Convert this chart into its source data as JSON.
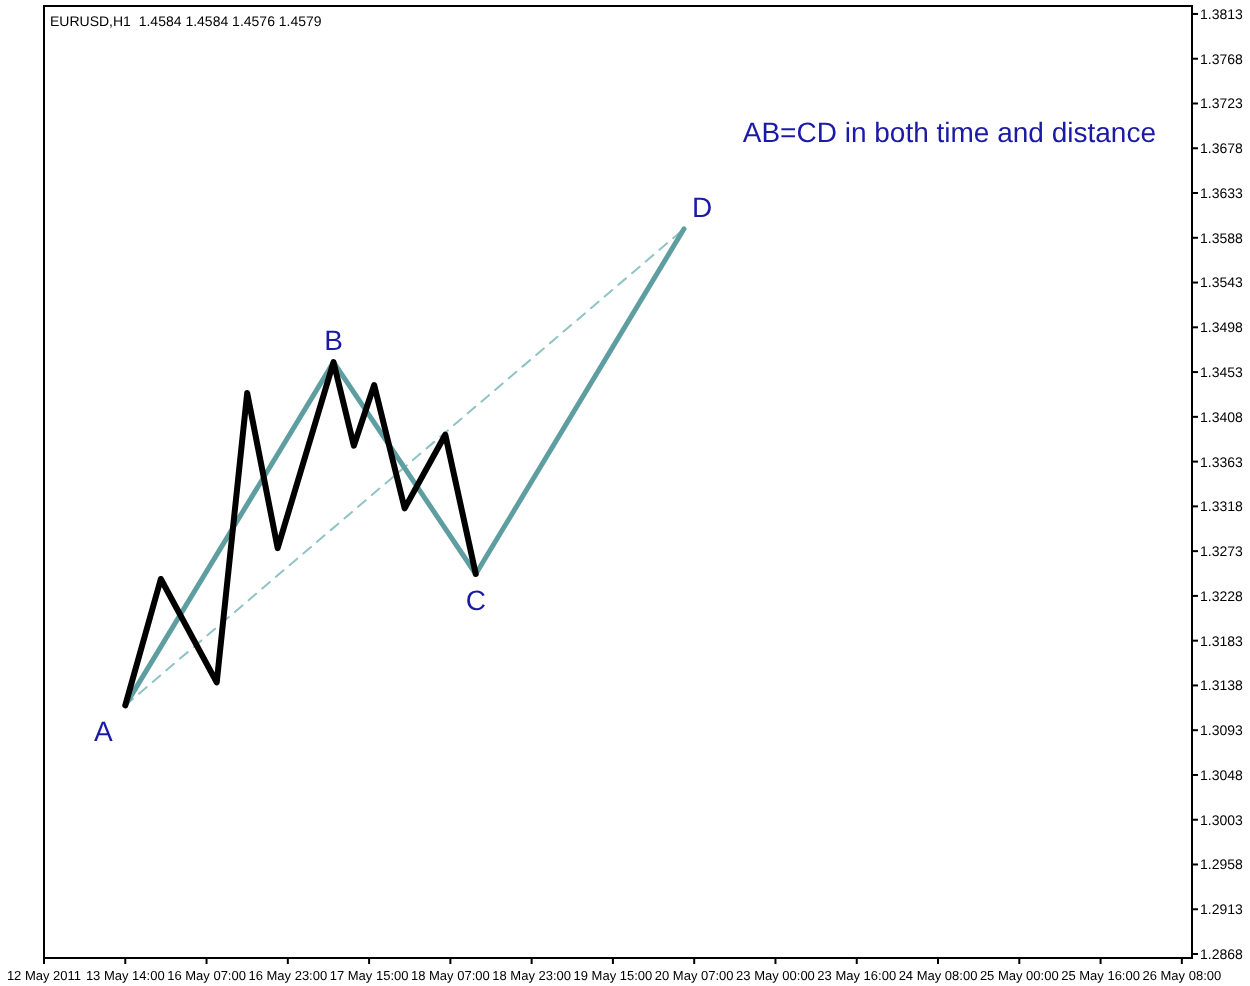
{
  "chart_data": {
    "type": "line",
    "title": "EURUSD,H1  1.4584 1.4584 1.4576 1.4579",
    "categories": [
      "12 May 2011",
      null,
      null,
      null,
      null,
      null,
      null,
      null,
      null,
      null,
      null,
      null,
      null,
      null,
      null,
      null,
      "13 May 14:00",
      null,
      null,
      null,
      null,
      null,
      null,
      null,
      null,
      null,
      null,
      null,
      null,
      null,
      null,
      null,
      "16 May 07:00",
      null,
      null,
      null,
      null,
      null,
      null,
      null,
      null,
      null,
      null,
      null,
      null,
      null,
      null,
      null,
      "16 May 23:00",
      null,
      null,
      null,
      null,
      null,
      null,
      null,
      null,
      null,
      null,
      null,
      null,
      null,
      null,
      null,
      "17 May 15:00",
      null,
      null,
      null,
      null,
      null,
      null,
      null,
      null,
      null,
      null,
      null,
      null,
      null,
      null,
      null,
      "18 May 07:00",
      null,
      null,
      null,
      null,
      null,
      null,
      null,
      null,
      null,
      null,
      null,
      null,
      null,
      null,
      null,
      "18 May 23:00",
      null,
      null,
      null,
      null,
      null,
      null,
      null,
      null,
      null,
      null,
      null,
      null,
      null,
      null,
      null,
      "19 May 15:00",
      null,
      null,
      null,
      null,
      null,
      null,
      null,
      null,
      null,
      null,
      null,
      null,
      null,
      null,
      null,
      "20 May 07:00",
      null,
      null,
      null,
      null,
      null,
      null,
      null,
      null,
      null,
      null,
      null,
      null,
      null,
      null,
      null,
      "23 May 00:00",
      null,
      null,
      null,
      null,
      null,
      null,
      null,
      null,
      null,
      null,
      null,
      null,
      null,
      null,
      null,
      "23 May 16:00",
      null,
      null,
      null,
      null,
      null,
      null,
      null,
      null,
      null,
      null,
      null,
      null,
      null,
      null,
      null,
      "24 May 08:00",
      null,
      null,
      null,
      null,
      null,
      null,
      null,
      null,
      null,
      null,
      null,
      null,
      null,
      null,
      null,
      "25 May 00:00",
      null,
      null,
      null,
      null,
      null,
      null,
      null,
      null,
      null,
      null,
      null,
      null,
      null,
      null,
      null,
      "25 May 16:00",
      null,
      null,
      null,
      null,
      null,
      null,
      null,
      null,
      null,
      null,
      null,
      null,
      null,
      null,
      null,
      "26 May 08:00",
      null,
      null
    ],
    "ylim": [
      1.2864,
      1.3821
    ],
    "yticks": [
      {
        "value": 1.2868,
        "label": "1.2868"
      },
      {
        "value": 1.2913,
        "label": "1.2913"
      },
      {
        "value": 1.2958,
        "label": "1.2958"
      },
      {
        "value": 1.3003,
        "label": "1.3003"
      },
      {
        "value": 1.3048,
        "label": "1.3048"
      },
      {
        "value": 1.3093,
        "label": "1.3093"
      },
      {
        "value": 1.3138,
        "label": "1.3138"
      },
      {
        "value": 1.3183,
        "label": "1.3183"
      },
      {
        "value": 1.3228,
        "label": "1.3228"
      },
      {
        "value": 1.3273,
        "label": "1.3273"
      },
      {
        "value": 1.3318,
        "label": "1.3318"
      },
      {
        "value": 1.3363,
        "label": "1.3363"
      },
      {
        "value": 1.3408,
        "label": "1.3408"
      },
      {
        "value": 1.3453,
        "label": "1.3453"
      },
      {
        "value": 1.3498,
        "label": "1.3498"
      },
      {
        "value": 1.3543,
        "label": "1.3543"
      },
      {
        "value": 1.3588,
        "label": "1.3588"
      },
      {
        "value": 1.3633,
        "label": "1.3633"
      },
      {
        "value": 1.3678,
        "label": "1.3678"
      },
      {
        "value": 1.3723,
        "label": "1.3723"
      },
      {
        "value": 1.3768,
        "label": "1.3768"
      },
      {
        "value": 1.3813,
        "label": "1.3813"
      }
    ],
    "grid": false,
    "marker": "none",
    "series": [
      {
        "color": "#8fc3c6",
        "line_style": "dashed",
        "values": [
          null,
          null,
          null,
          null,
          null,
          null,
          null,
          null,
          null,
          null,
          null,
          null,
          null,
          null,
          null,
          null,
          1.3118,
          null,
          null,
          null,
          null,
          null,
          null,
          null,
          null,
          null,
          null,
          null,
          null,
          null,
          null,
          null,
          null,
          null,
          null,
          null,
          null,
          null,
          null,
          null,
          null,
          null,
          null,
          null,
          null,
          null,
          null,
          null,
          null,
          null,
          null,
          null,
          null,
          null,
          null,
          null,
          null,
          null,
          null,
          null,
          null,
          null,
          null,
          null,
          null,
          null,
          null,
          null,
          null,
          null,
          null,
          null,
          null,
          null,
          null,
          null,
          null,
          null,
          null,
          null,
          null,
          null,
          null,
          null,
          null,
          null,
          null,
          null,
          null,
          null,
          null,
          null,
          null,
          null,
          null,
          null,
          null,
          null,
          null,
          null,
          null,
          null,
          null,
          null,
          null,
          null,
          null,
          null,
          null,
          null,
          null,
          null,
          null,
          null,
          null,
          null,
          null,
          null,
          null,
          null,
          null,
          null,
          null,
          null,
          null,
          null,
          1.3597,
          null,
          null,
          null,
          null,
          null,
          null,
          null,
          null,
          null,
          null,
          null,
          null,
          null,
          null,
          null,
          null,
          null,
          null,
          null,
          null,
          null,
          null,
          null,
          null,
          null,
          null,
          null,
          null,
          null,
          null,
          null,
          null,
          null,
          null,
          null,
          null,
          null,
          null,
          null,
          null,
          null,
          null,
          null,
          null,
          null,
          null,
          null,
          null,
          null,
          null,
          null,
          null,
          null,
          null,
          null,
          null,
          null,
          null,
          null,
          null,
          null,
          null,
          null,
          null,
          null,
          null,
          null,
          null,
          null,
          null,
          null,
          null,
          null,
          null,
          null,
          null,
          null,
          null,
          null,
          null,
          null,
          null,
          null,
          null,
          null,
          null,
          null,
          null,
          null,
          null,
          null,
          null,
          null,
          null,
          null,
          null,
          null,
          null,
          null,
          null
        ]
      },
      {
        "color": "#5f9ea0",
        "line_style": "solid",
        "values": [
          null,
          null,
          null,
          null,
          null,
          null,
          null,
          null,
          null,
          null,
          null,
          null,
          null,
          null,
          null,
          null,
          1.3118,
          null,
          null,
          null,
          null,
          null,
          null,
          null,
          null,
          null,
          null,
          null,
          null,
          null,
          null,
          null,
          null,
          null,
          null,
          null,
          null,
          null,
          null,
          null,
          null,
          null,
          null,
          null,
          null,
          null,
          null,
          null,
          null,
          null,
          null,
          null,
          null,
          null,
          null,
          null,
          null,
          1.3463,
          null,
          null,
          null,
          null,
          null,
          null,
          null,
          null,
          null,
          null,
          null,
          null,
          null,
          null,
          null,
          null,
          null,
          null,
          null,
          null,
          null,
          null,
          null,
          null,
          null,
          null,
          null,
          1.325,
          null,
          null,
          null,
          null,
          null,
          null,
          null,
          null,
          null,
          null,
          null,
          null,
          null,
          null,
          null,
          null,
          null,
          null,
          null,
          null,
          null,
          null,
          null,
          null,
          null,
          null,
          null,
          null,
          null,
          null,
          null,
          null,
          null,
          null,
          null,
          null,
          null,
          null,
          null,
          null,
          1.3597,
          null,
          null,
          null,
          null,
          null,
          null,
          null,
          null,
          null,
          null,
          null,
          null,
          null,
          null,
          null,
          null,
          null,
          null,
          null,
          null,
          null,
          null,
          null,
          null,
          null,
          null,
          null,
          null,
          null,
          null,
          null,
          null,
          null,
          null,
          null,
          null,
          null,
          null,
          null,
          null,
          null,
          null,
          null,
          null,
          null,
          null,
          null,
          null,
          null,
          null,
          null,
          null,
          null,
          null,
          null,
          null,
          null,
          null,
          null,
          null,
          null,
          null,
          null,
          null,
          null,
          null,
          null,
          null,
          null,
          null,
          null,
          null,
          null,
          null,
          null,
          null,
          null,
          null,
          null,
          null,
          null,
          null,
          null,
          null,
          null,
          null,
          null,
          null,
          null,
          null,
          null,
          null,
          null,
          null,
          null,
          null,
          null,
          null,
          null,
          null
        ]
      },
      {
        "color": "#000000",
        "line_style": "solid",
        "values": [
          null,
          null,
          null,
          null,
          null,
          null,
          null,
          null,
          null,
          null,
          null,
          null,
          null,
          null,
          null,
          null,
          1.3118,
          null,
          null,
          null,
          null,
          null,
          null,
          1.3245,
          null,
          null,
          null,
          null,
          null,
          null,
          null,
          null,
          null,
          null,
          1.3141,
          null,
          null,
          null,
          null,
          null,
          1.3432,
          null,
          null,
          null,
          null,
          null,
          1.3276,
          null,
          null,
          null,
          null,
          null,
          null,
          null,
          null,
          null,
          null,
          1.3463,
          null,
          null,
          null,
          1.3379,
          null,
          null,
          null,
          1.344,
          null,
          null,
          null,
          null,
          null,
          1.3316,
          null,
          null,
          null,
          null,
          null,
          null,
          null,
          1.339,
          null,
          null,
          null,
          null,
          null,
          1.325,
          null,
          null,
          null,
          null,
          null,
          null,
          null,
          null,
          null,
          null,
          null,
          null,
          null,
          null,
          null,
          null,
          null,
          null,
          null,
          null,
          null,
          null,
          null,
          null,
          null,
          null,
          null,
          null,
          null,
          null,
          null,
          null,
          null,
          null,
          null,
          null,
          null,
          null,
          null,
          null,
          null,
          null,
          null,
          null,
          null,
          null,
          null,
          null,
          null,
          null,
          null,
          null,
          null,
          null,
          null,
          null,
          null,
          null,
          null,
          null,
          null,
          null,
          null,
          null,
          null,
          null,
          null,
          null,
          null,
          null,
          null,
          null,
          null,
          null,
          null,
          null,
          null,
          null,
          null,
          null,
          null,
          null,
          null,
          null,
          null,
          null,
          null,
          null,
          null,
          null,
          null,
          null,
          null,
          null,
          null,
          null,
          null,
          null,
          null,
          null,
          null,
          null,
          null,
          null,
          null,
          null,
          null,
          null,
          null,
          null,
          null,
          null,
          null,
          null,
          null,
          null,
          null,
          null,
          null,
          null,
          null,
          null,
          null,
          null,
          null,
          null,
          null,
          null,
          null,
          null,
          null,
          null,
          null,
          null,
          null,
          null,
          null,
          null,
          null,
          null,
          null
        ]
      }
    ],
    "annotations": [
      "A",
      "B",
      "C",
      "D",
      "AB=CD in both time and distance"
    ]
  }
}
